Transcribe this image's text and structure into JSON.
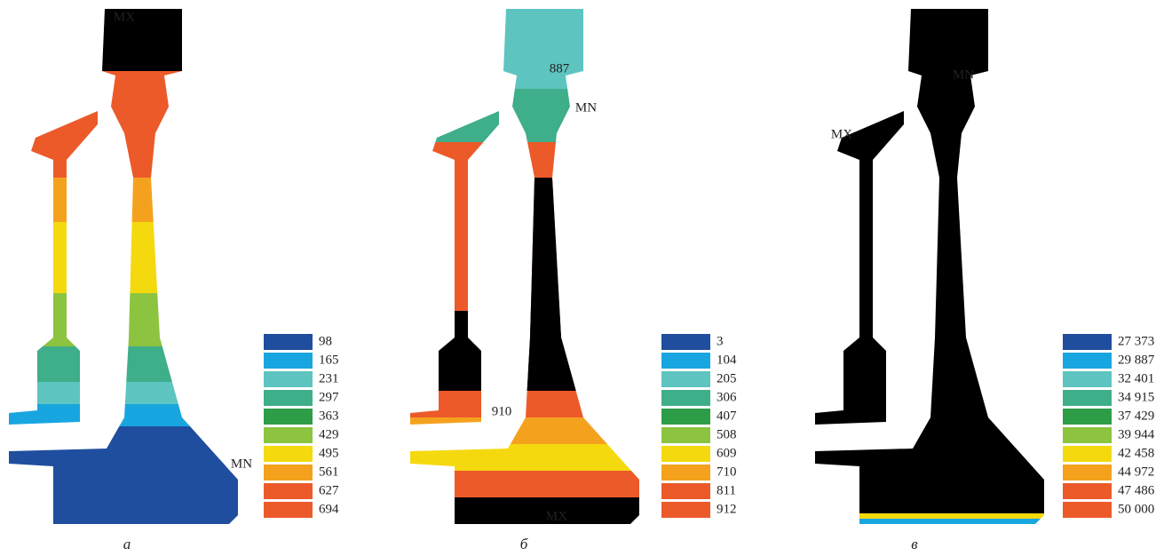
{
  "legend_colors": [
    "#1f4e9e",
    "#19a6e0",
    "#5ec4c0",
    "#3fae8a",
    "#2d9e47",
    "#8cc43f",
    "#f5d90f",
    "#f4a21e",
    "#ec5a2a"
  ],
  "panels": [
    {
      "label": "а",
      "annotations": [
        "MX",
        "MN"
      ],
      "legend": [
        "98",
        "165",
        "231",
        "297",
        "363",
        "429",
        "495",
        "561",
        "627",
        "694"
      ]
    },
    {
      "label": "б",
      "annotations": [
        "887",
        "MN",
        "910",
        "MX"
      ],
      "legend": [
        "3",
        "104",
        "205",
        "306",
        "407",
        "508",
        "609",
        "710",
        "811",
        "912"
      ]
    },
    {
      "label": "в",
      "annotations": [
        "MX",
        "MN"
      ],
      "legend": [
        "27 373",
        "29 887",
        "32 401",
        "34 915",
        "37 429",
        "39 944",
        "42 458",
        "44 972",
        "47 486",
        "50 000"
      ]
    }
  ]
}
